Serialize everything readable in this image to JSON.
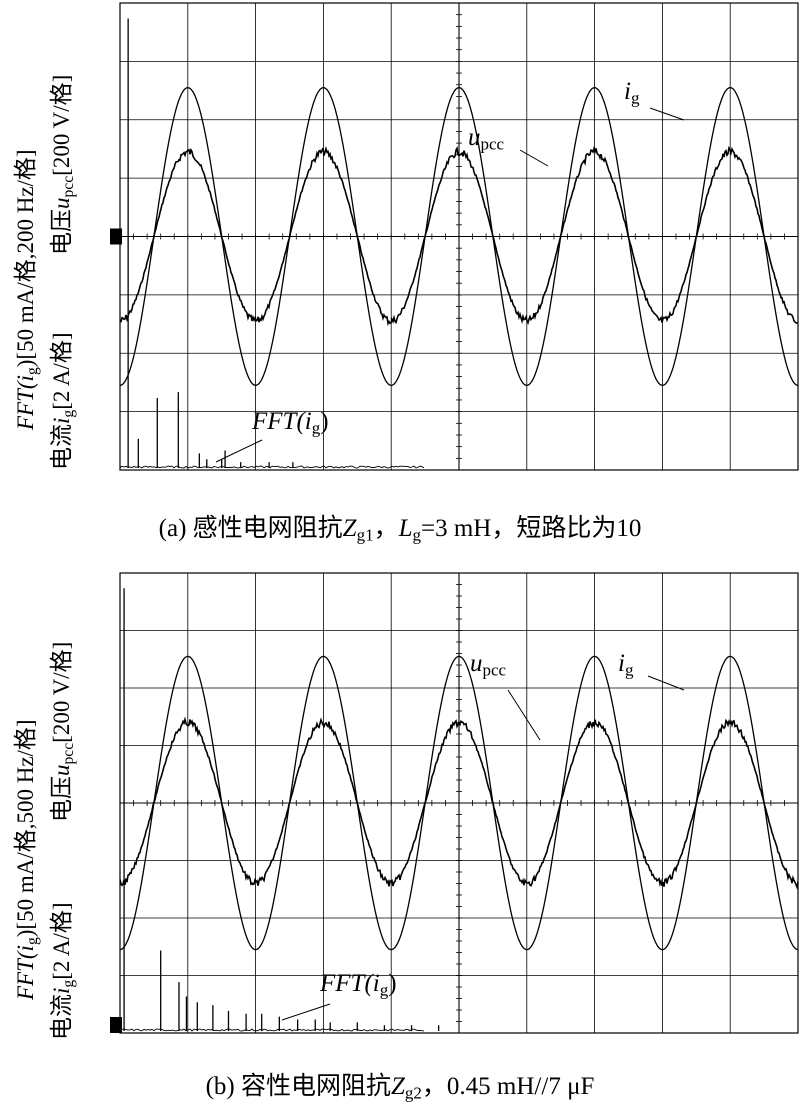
{
  "chart_data": [
    {
      "type": "line",
      "panel": "a",
      "caption": {
        "prefix": "(a) 感性电网阻抗",
        "z_sym": "Z",
        "z_sub": "g1",
        "mid": "，",
        "l_sym": "L",
        "l_sub": "g",
        "suffix": "=3 mH，短路比为10"
      },
      "ylabels": {
        "right": {
          "a": "电压",
          "sym": "u",
          "sub": "pcc",
          "b": "[200 V/格]"
        },
        "left1": {
          "a": "FFT(",
          "sym": "i",
          "sub": "g",
          "b": ")[50 mA/格,200 Hz/格]"
        },
        "left2": {
          "a": "电流",
          "sym": "i",
          "sub": "g",
          "b": "[2 A/格]"
        }
      },
      "annotations": {
        "ig": {
          "sym": "i",
          "sub": "g"
        },
        "upcc": {
          "sym": "u",
          "sub": "pcc"
        },
        "fft": {
          "a": "FFT(",
          "sym": "i",
          "sub": "g",
          "b": ")"
        }
      },
      "grid": {
        "x_divisions": 10,
        "y_divisions": 8
      },
      "series": [
        {
          "name": "i_g",
          "unit_per_div": "2 A",
          "amplitude_div": 2.55,
          "cycles": 5.0,
          "phase_div": 0.5
        },
        {
          "name": "u_pcc",
          "unit_per_div": "200 V",
          "amplitude_div": 1.45,
          "cycles": 5.0,
          "phase_div": 0.5
        }
      ],
      "fft": {
        "unit": "50 mA/格, 200 Hz/格",
        "peaks": [
          {
            "x_div": 0.12,
            "y_div": 7.7
          },
          {
            "x_div": 0.27,
            "y_div": 0.5
          },
          {
            "x_div": 0.55,
            "y_div": 1.2
          },
          {
            "x_div": 0.86,
            "y_div": 1.3
          },
          {
            "x_div": 1.17,
            "y_div": 0.25
          },
          {
            "x_div": 1.28,
            "y_div": 0.15
          },
          {
            "x_div": 1.5,
            "y_div": 0.15
          },
          {
            "x_div": 1.55,
            "y_div": 0.3
          },
          {
            "x_div": 1.78,
            "y_div": 0.1
          },
          {
            "x_div": 2.2,
            "y_div": 0.1
          },
          {
            "x_div": 2.55,
            "y_div": 0.1
          }
        ]
      }
    },
    {
      "type": "line",
      "panel": "b",
      "caption": {
        "prefix": "(b) 容性电网阻抗",
        "z_sym": "Z",
        "z_sub": "g2",
        "suffix": "，0.45 mH//7 μF"
      },
      "ylabels": {
        "right": {
          "a": "电压",
          "sym": "u",
          "sub": "pcc",
          "b": "[200 V/格]"
        },
        "left1": {
          "a": "FFT(",
          "sym": "i",
          "sub": "g",
          "b": ")[50 mA/格,500 Hz/格]"
        },
        "left2": {
          "a": "电流",
          "sym": "i",
          "sub": "g",
          "b": "[2 A/格]"
        }
      },
      "annotations": {
        "ig": {
          "sym": "i",
          "sub": "g"
        },
        "upcc": {
          "sym": "u",
          "sub": "pcc"
        },
        "fft": {
          "a": "FFT(",
          "sym": "i",
          "sub": "g",
          "b": ")"
        }
      },
      "grid": {
        "x_divisions": 10,
        "y_divisions": 8
      },
      "series": [
        {
          "name": "i_g",
          "unit_per_div": "2 A",
          "amplitude_div": 2.55,
          "cycles": 5.0,
          "phase_div": 0.5
        },
        {
          "name": "u_pcc",
          "unit_per_div": "200 V",
          "amplitude_div": 1.4,
          "cycles": 5.0,
          "phase_div": 0.5
        }
      ],
      "fft": {
        "unit": "50 mA/格, 500 Hz/格",
        "peaks": [
          {
            "x_div": 0.06,
            "y_div": 7.7
          },
          {
            "x_div": 0.6,
            "y_div": 1.4
          },
          {
            "x_div": 0.87,
            "y_div": 0.85
          },
          {
            "x_div": 0.98,
            "y_div": 0.6
          },
          {
            "x_div": 1.14,
            "y_div": 0.5
          },
          {
            "x_div": 1.37,
            "y_div": 0.45
          },
          {
            "x_div": 1.6,
            "y_div": 0.35
          },
          {
            "x_div": 1.86,
            "y_div": 0.3
          },
          {
            "x_div": 2.09,
            "y_div": 0.3
          },
          {
            "x_div": 2.35,
            "y_div": 0.25
          },
          {
            "x_div": 2.62,
            "y_div": 0.2
          },
          {
            "x_div": 2.88,
            "y_div": 0.2
          },
          {
            "x_div": 3.1,
            "y_div": 0.15
          },
          {
            "x_div": 3.5,
            "y_div": 0.15
          },
          {
            "x_div": 3.9,
            "y_div": 0.1
          },
          {
            "x_div": 4.3,
            "y_div": 0.1
          },
          {
            "x_div": 4.7,
            "y_div": 0.1
          }
        ]
      }
    }
  ]
}
